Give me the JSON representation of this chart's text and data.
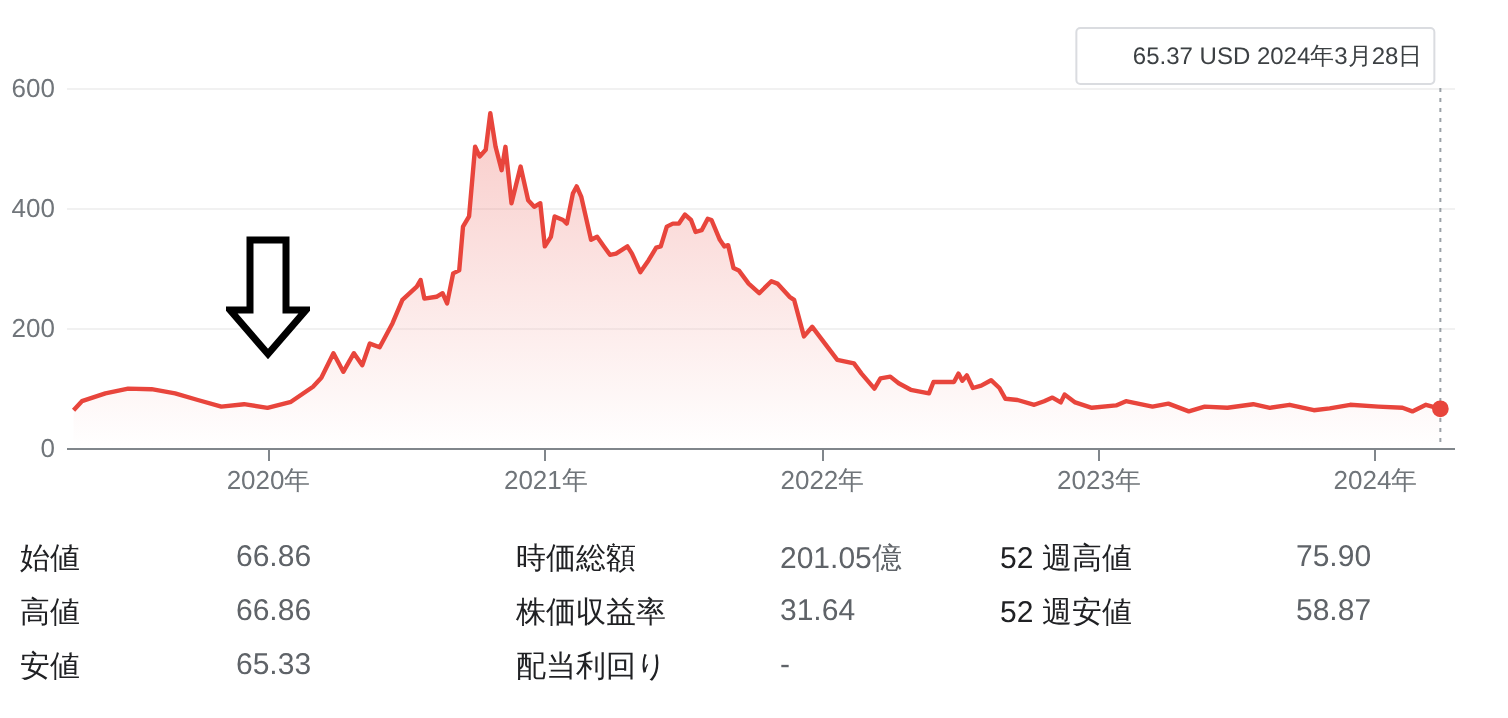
{
  "chart_data": [
    {
      "type": "area",
      "x": [
        "2019-04-20",
        "2019-05-01",
        "2019-06-01",
        "2019-07-01",
        "2019-08-01",
        "2019-09-01",
        "2019-10-01",
        "2019-11-01",
        "2019-12-01",
        "2020-01-01",
        "2020-02-01",
        "2020-03-01",
        "2020-03-12",
        "2020-03-28",
        "2020-04-10",
        "2020-04-24",
        "2020-05-05",
        "2020-05-15",
        "2020-05-28",
        "2020-06-14",
        "2020-06-27",
        "2020-07-16",
        "2020-07-21",
        "2020-07-26",
        "2020-08-11",
        "2020-08-19",
        "2020-08-25",
        "2020-09-02",
        "2020-09-10",
        "2020-09-15",
        "2020-09-23",
        "2020-10-01",
        "2020-10-07",
        "2020-10-15",
        "2020-10-21",
        "2020-10-28",
        "2020-11-05",
        "2020-11-10",
        "2020-11-18",
        "2020-11-30",
        "2020-12-10",
        "2020-12-18",
        "2020-12-26",
        "2021-01-01",
        "2021-01-09",
        "2021-01-14",
        "2021-01-25",
        "2021-01-30",
        "2021-02-07",
        "2021-02-12",
        "2021-02-18",
        "2021-03-03",
        "2021-03-11",
        "2021-03-20",
        "2021-03-28",
        "2021-04-05",
        "2021-04-20",
        "2021-04-26",
        "2021-05-07",
        "2021-05-18",
        "2021-05-28",
        "2021-06-03",
        "2021-06-11",
        "2021-06-19",
        "2021-06-27",
        "2021-07-05",
        "2021-07-13",
        "2021-07-19",
        "2021-07-27",
        "2021-08-04",
        "2021-08-09",
        "2021-08-20",
        "2021-08-26",
        "2021-08-31",
        "2021-09-07",
        "2021-09-14",
        "2021-09-27",
        "2021-10-11",
        "2021-10-27",
        "2021-11-04",
        "2021-11-20",
        "2021-11-26",
        "2021-12-09",
        "2021-12-20",
        "2022-01-01",
        "2022-01-22",
        "2022-02-13",
        "2022-02-23",
        "2022-03-12",
        "2022-03-20",
        "2022-04-02",
        "2022-04-13",
        "2022-04-29",
        "2022-05-23",
        "2022-05-29",
        "2022-06-25",
        "2022-07-01",
        "2022-07-06",
        "2022-07-12",
        "2022-07-20",
        "2022-07-31",
        "2022-08-13",
        "2022-08-24",
        "2022-09-01",
        "2022-09-17",
        "2022-10-09",
        "2022-10-22",
        "2022-11-02",
        "2022-11-13",
        "2022-11-18",
        "2022-12-02",
        "2022-12-24",
        "2023-01-25",
        "2023-02-07",
        "2023-03-14",
        "2023-04-04",
        "2023-05-01",
        "2023-05-22",
        "2023-06-21",
        "2023-07-25",
        "2023-08-16",
        "2023-09-11",
        "2023-10-13",
        "2023-11-03",
        "2023-11-30",
        "2024-01-06",
        "2024-02-07",
        "2024-02-20",
        "2024-03-09",
        "2024-03-28"
      ],
      "series": [
        {
          "color": "#e8453c",
          "values": [
            63,
            78,
            91,
            99,
            98,
            91,
            80,
            69,
            73,
            67,
            77,
            102,
            117,
            158,
            127,
            158,
            138,
            174,
            168,
            208,
            247,
            269,
            280,
            249,
            252,
            258,
            241,
            291,
            296,
            369,
            386,
            502,
            486,
            497,
            558,
            502,
            463,
            502,
            408,
            469,
            413,
            402,
            408,
            336,
            352,
            386,
            380,
            374,
            424,
            436,
            419,
            347,
            352,
            336,
            322,
            324,
            336,
            324,
            293,
            313,
            334,
            336,
            369,
            374,
            374,
            389,
            380,
            360,
            363,
            382,
            380,
            347,
            336,
            338,
            300,
            296,
            274,
            258,
            278,
            274,
            252,
            247,
            186,
            202,
            182,
            147,
            141,
            124,
            99,
            116,
            119,
            108,
            97,
            91,
            110,
            110,
            124,
            112,
            121,
            100,
            104,
            113,
            100,
            82,
            80,
            72,
            78,
            84,
            76,
            89,
            76,
            67,
            71,
            78,
            69,
            74,
            61,
            69,
            67,
            73,
            67,
            72,
            63,
            66,
            72,
            69,
            67,
            61,
            72,
            65.37
          ]
        }
      ],
      "xlim": [
        "2019-04-10",
        "2024-04-15"
      ],
      "ylim": [
        0,
        600
      ],
      "yticks": [
        0,
        200,
        400,
        600
      ],
      "xticks": [
        {
          "value": "2020-01-01",
          "label": "2020年"
        },
        {
          "value": "2021-01-01",
          "label": "2021年"
        },
        {
          "value": "2022-01-01",
          "label": "2022年"
        },
        {
          "value": "2023-01-01",
          "label": "2023年"
        },
        {
          "value": "2024-01-01",
          "label": "2024年"
        }
      ],
      "grid": "y",
      "ref_lines": [
        {
          "axis": "x",
          "value": "2024-03-28",
          "label": null,
          "color": "#9aa0a6",
          "line_style": "dotted"
        }
      ],
      "annotations": [
        "65.37 USD  2024年3月28日"
      ]
    },
    {
      "type": "other",
      "annotations": [
        "始値",
        "66.86",
        "時価総額",
        "201.05億",
        "52 週高値",
        "75.90",
        "高値",
        "66.86",
        "株価収益率",
        "31.64",
        "52 週安値",
        "58.87",
        "安値",
        "65.33",
        "配当利回り",
        "-"
      ]
    }
  ]
}
